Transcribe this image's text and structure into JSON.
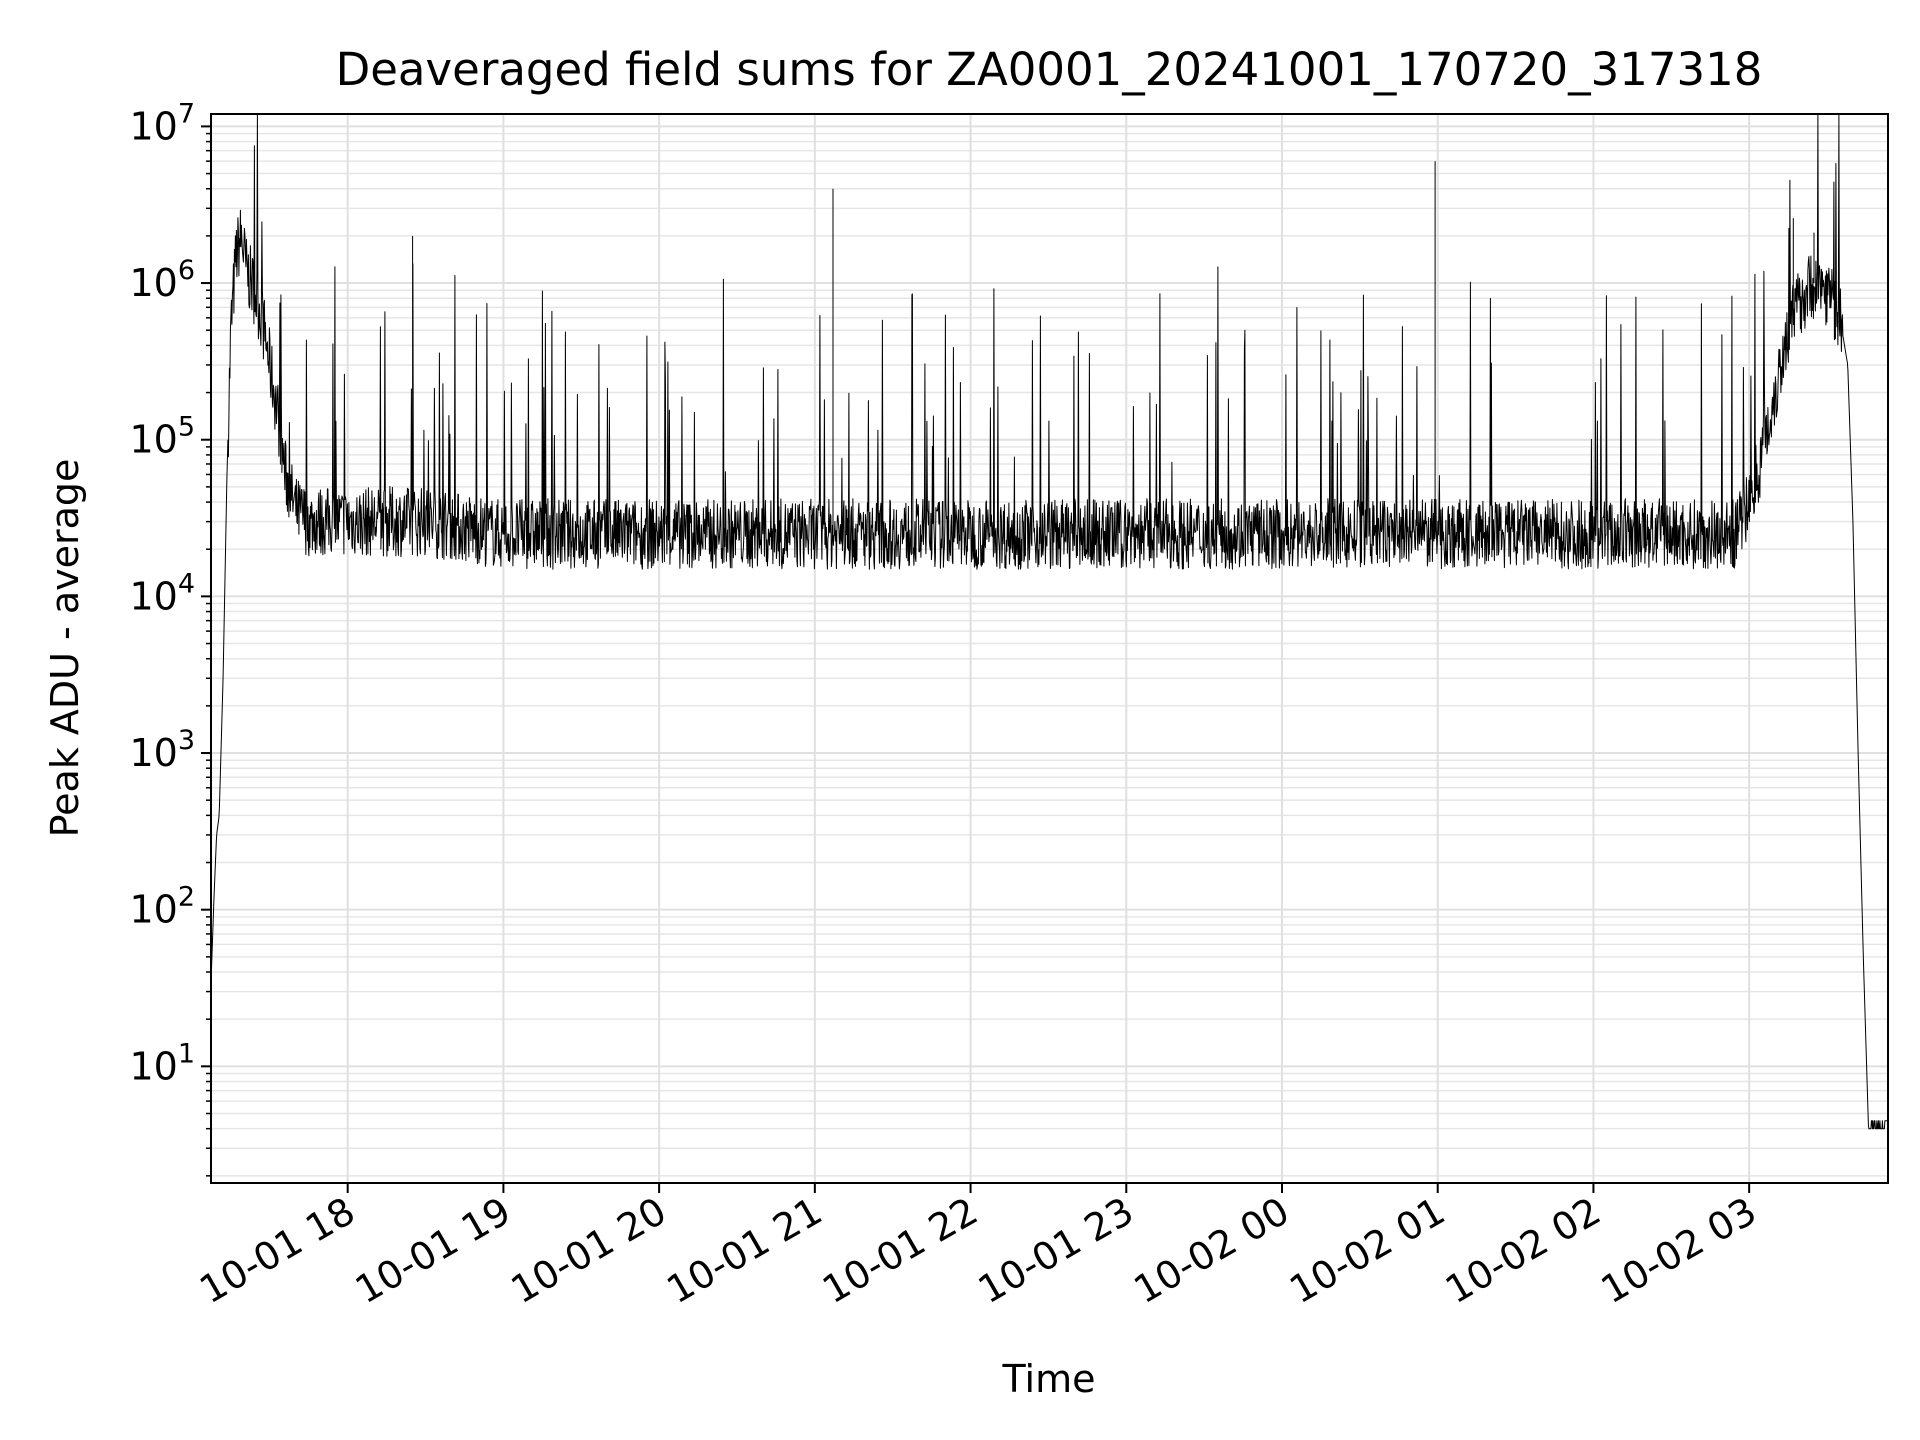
{
  "chart_data": {
    "type": "line",
    "title": "Deaveraged field sums for ZA0001_20241001_170720_317318",
    "xlabel": "Time",
    "ylabel": "Peak ADU - average",
    "yscale": "log",
    "ylim": [
      1.8,
      12000000
    ],
    "xlim": [
      "2024-10-01 17:07:20",
      "2024-10-02 03:53:30"
    ],
    "grid": "major and minor",
    "x_tick_labels": [
      "10-01 18",
      "10-01 19",
      "10-01 20",
      "10-01 21",
      "10-01 22",
      "10-01 23",
      "10-02 00",
      "10-02 01",
      "10-02 02",
      "10-02 03"
    ],
    "x_ticks": [
      "2024-10-01 18:00",
      "2024-10-01 19:00",
      "2024-10-01 20:00",
      "2024-10-01 21:00",
      "2024-10-01 22:00",
      "2024-10-01 23:00",
      "2024-10-02 00:00",
      "2024-10-02 01:00",
      "2024-10-02 02:00",
      "2024-10-02 03:00"
    ],
    "y_ticks": [
      {
        "value": 10,
        "base": "10",
        "exp": "1"
      },
      {
        "value": 100,
        "base": "10",
        "exp": "2"
      },
      {
        "value": 1000,
        "base": "10",
        "exp": "3"
      },
      {
        "value": 10000,
        "base": "10",
        "exp": "4"
      },
      {
        "value": 100000,
        "base": "10",
        "exp": "5"
      },
      {
        "value": 1000000,
        "base": "10",
        "exp": "6"
      },
      {
        "value": 10000000,
        "base": "10",
        "exp": "7"
      }
    ],
    "series": [
      {
        "color": "#000000",
        "x": [
          "2024-10-01 17:07:30",
          "2024-10-01 17:08:30",
          "2024-10-01 17:09:30",
          "2024-10-01 17:10:30",
          "2024-10-01 17:12:00",
          "2024-10-01 17:13:30",
          "2024-10-01 17:15:00",
          "2024-10-01 17:17:00",
          "2024-10-01 17:19:00",
          "2024-10-01 17:21:00",
          "2024-10-01 17:24:00",
          "2024-10-01 17:27:00",
          "2024-10-01 17:30:00",
          "2024-10-01 17:33:00",
          "2024-10-01 17:36:00",
          "2024-10-01 17:40:00",
          "2024-10-01 17:45:00",
          "2024-10-01 17:50:00",
          "2024-10-01 17:55:00",
          "2024-10-01 18:00:00",
          "2024-10-01 18:30:00",
          "2024-10-01 19:00:00",
          "2024-10-01 19:30:00",
          "2024-10-01 20:00:00",
          "2024-10-01 20:30:00",
          "2024-10-01 21:00:00",
          "2024-10-01 21:30:00",
          "2024-10-01 22:00:00",
          "2024-10-01 22:30:00",
          "2024-10-01 23:00:00",
          "2024-10-01 23:30:00",
          "2024-10-02 00:00:00",
          "2024-10-02 00:30:00",
          "2024-10-02 01:00:00",
          "2024-10-02 01:30:00",
          "2024-10-02 02:00:00",
          "2024-10-02 02:30:00",
          "2024-10-02 02:55:00",
          "2024-10-02 03:00:00",
          "2024-10-02 03:05:00",
          "2024-10-02 03:10:00",
          "2024-10-02 03:15:00",
          "2024-10-02 03:20:00",
          "2024-10-02 03:25:00",
          "2024-10-02 03:30:00",
          "2024-10-02 03:35:00",
          "2024-10-02 03:38:00",
          "2024-10-02 03:40:00",
          "2024-10-02 03:42:00",
          "2024-10-02 03:44:00",
          "2024-10-02 03:46:00",
          "2024-10-02 03:53:30"
        ],
        "y": [
          40,
          120,
          300,
          400,
          3000,
          60000,
          500000,
          1500000,
          2000000,
          1200000,
          900000,
          600000,
          300000,
          150000,
          60000,
          35000,
          30000,
          30000,
          30000,
          30000,
          30000,
          25000,
          25000,
          25000,
          25000,
          25000,
          25000,
          25000,
          25000,
          25000,
          25000,
          25000,
          25000,
          25000,
          25000,
          25000,
          25000,
          25000,
          40000,
          80000,
          200000,
          500000,
          800000,
          1000000,
          900000,
          600000,
          300000,
          30000,
          1000,
          50,
          4,
          4
        ],
        "spikes": [
          {
            "x": "2024-10-01 18:25:00",
            "y": 2000000
          },
          {
            "x": "2024-10-01 21:07:00",
            "y": 4000000
          },
          {
            "x": "2024-10-02 00:59:00",
            "y": 6000000
          },
          {
            "x": "2024-10-02 03:17:00",
            "y": 2600000
          },
          {
            "x": "2024-10-02 03:25:00",
            "y": 2100000
          }
        ]
      }
    ]
  }
}
